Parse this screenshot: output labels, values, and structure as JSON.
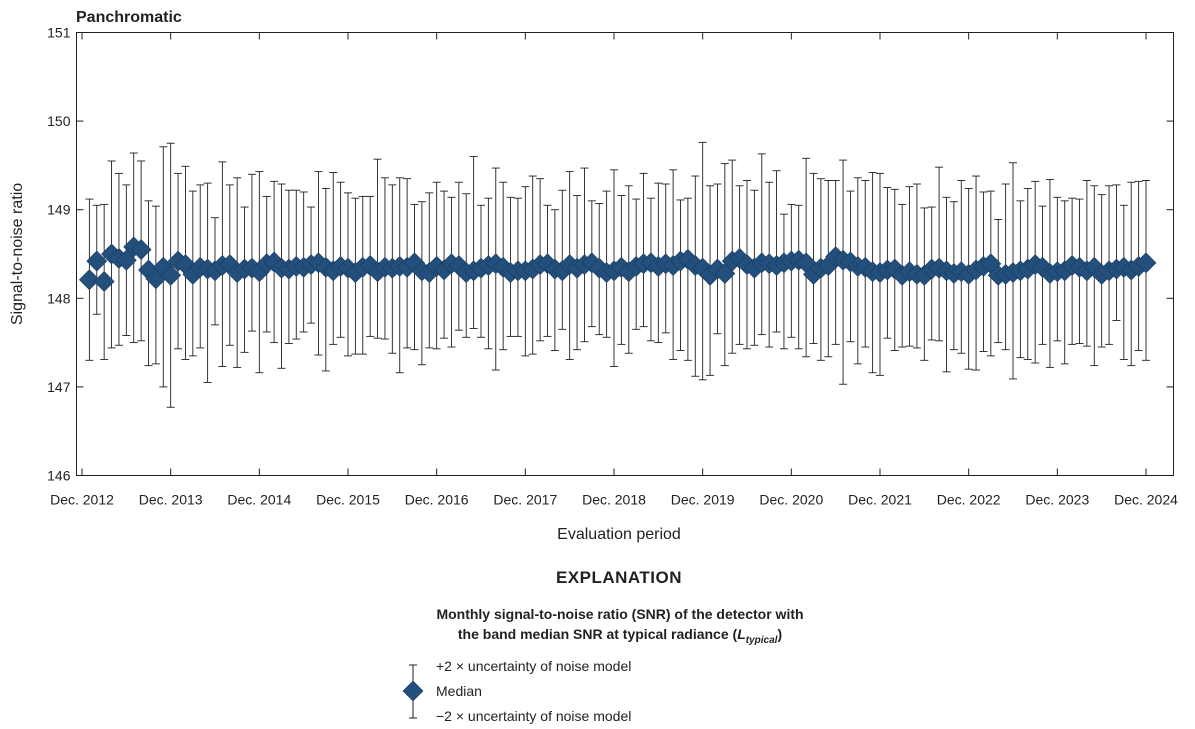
{
  "chart_data": {
    "type": "scatter",
    "title": "Panchromatic",
    "xlabel": "Evaluation period",
    "ylabel": "Signal-to-noise ratio",
    "ylim": [
      146,
      151
    ],
    "yticks": [
      "146",
      "147",
      "148",
      "149",
      "150",
      "151"
    ],
    "xticks": [
      "Dec. 2012",
      "Dec. 2013",
      "Dec. 2014",
      "Dec. 2015",
      "Dec. 2016",
      "Dec. 2017",
      "Dec. 2018",
      "Dec. 2019",
      "Dec. 2020",
      "Dec. 2021",
      "Dec. 2022",
      "Dec. 2023",
      "Dec. 2024"
    ],
    "x_unit": "month",
    "marker_color": "#234f7d",
    "series": [
      {
        "name": "Median",
        "months": [
          "2013-01",
          "2013-02",
          "2013-03",
          "2013-04",
          "2013-05",
          "2013-06",
          "2013-07",
          "2013-08",
          "2013-09",
          "2013-10",
          "2013-11",
          "2013-12",
          "2014-01",
          "2014-02",
          "2014-03",
          "2014-04",
          "2014-05",
          "2014-06",
          "2014-07",
          "2014-08",
          "2014-09",
          "2014-10",
          "2014-11",
          "2014-12",
          "2015-01",
          "2015-02",
          "2015-03",
          "2015-04",
          "2015-05",
          "2015-06",
          "2015-07",
          "2015-08",
          "2015-09",
          "2015-10",
          "2015-11",
          "2015-12",
          "2016-01",
          "2016-02",
          "2016-03",
          "2016-04",
          "2016-05",
          "2016-06",
          "2016-07",
          "2016-08",
          "2016-09",
          "2016-10",
          "2016-11",
          "2016-12",
          "2017-01",
          "2017-02",
          "2017-03",
          "2017-04",
          "2017-05",
          "2017-06",
          "2017-07",
          "2017-08",
          "2017-09",
          "2017-10",
          "2017-11",
          "2017-12",
          "2018-01",
          "2018-02",
          "2018-03",
          "2018-04",
          "2018-05",
          "2018-06",
          "2018-07",
          "2018-08",
          "2018-09",
          "2018-10",
          "2018-11",
          "2018-12",
          "2019-01",
          "2019-02",
          "2019-03",
          "2019-04",
          "2019-05",
          "2019-06",
          "2019-07",
          "2019-08",
          "2019-09",
          "2019-10",
          "2019-11",
          "2019-12",
          "2020-01",
          "2020-02",
          "2020-03",
          "2020-04",
          "2020-05",
          "2020-06",
          "2020-07",
          "2020-08",
          "2020-09",
          "2020-10",
          "2020-11",
          "2020-12",
          "2021-01",
          "2021-02",
          "2021-03",
          "2021-04",
          "2021-05",
          "2021-06",
          "2021-07",
          "2021-08",
          "2021-09",
          "2021-10",
          "2021-11",
          "2021-12",
          "2022-01",
          "2022-02",
          "2022-03",
          "2022-04",
          "2022-05",
          "2022-06",
          "2022-07",
          "2022-08",
          "2022-09",
          "2022-10",
          "2022-11",
          "2022-12",
          "2023-01",
          "2023-02",
          "2023-03",
          "2023-04",
          "2023-05",
          "2023-06",
          "2023-07",
          "2023-08",
          "2023-09",
          "2023-10",
          "2023-11",
          "2023-12",
          "2024-01",
          "2024-02",
          "2024-03",
          "2024-04",
          "2024-05",
          "2024-06",
          "2024-07",
          "2024-08",
          "2024-09",
          "2024-10",
          "2024-11",
          "2024-12"
        ],
        "median": [
          148.21,
          148.42,
          148.19,
          148.5,
          148.45,
          148.43,
          148.58,
          148.55,
          148.32,
          148.22,
          148.35,
          148.26,
          148.42,
          148.38,
          148.27,
          148.35,
          148.33,
          148.31,
          148.37,
          148.38,
          148.29,
          148.33,
          148.34,
          148.3,
          148.39,
          148.41,
          148.34,
          148.33,
          148.36,
          148.35,
          148.38,
          148.4,
          148.35,
          148.31,
          148.36,
          148.34,
          148.29,
          148.35,
          148.37,
          148.3,
          148.35,
          148.34,
          148.36,
          148.35,
          148.4,
          148.31,
          148.29,
          148.36,
          148.32,
          148.39,
          148.37,
          148.29,
          148.31,
          148.34,
          148.37,
          148.39,
          148.35,
          148.29,
          148.31,
          148.31,
          148.33,
          148.38,
          148.39,
          148.33,
          148.31,
          148.38,
          148.34,
          148.38,
          148.4,
          148.34,
          148.29,
          148.31,
          148.35,
          148.3,
          148.36,
          148.39,
          148.4,
          148.36,
          148.39,
          148.37,
          148.42,
          148.44,
          148.37,
          148.34,
          148.26,
          148.33,
          148.28,
          148.42,
          148.45,
          148.38,
          148.34,
          148.4,
          148.39,
          148.37,
          148.4,
          148.42,
          148.43,
          148.4,
          148.27,
          148.34,
          148.37,
          148.47,
          148.43,
          148.41,
          148.36,
          148.35,
          148.3,
          148.29,
          148.32,
          148.33,
          148.26,
          148.3,
          148.27,
          148.26,
          148.33,
          148.34,
          148.31,
          148.28,
          148.3,
          148.27,
          148.32,
          148.36,
          148.39,
          148.26,
          148.27,
          148.29,
          148.31,
          148.33,
          148.38,
          148.35,
          148.28,
          148.3,
          148.31,
          148.37,
          148.35,
          148.31,
          148.35,
          148.27,
          148.31,
          148.33,
          148.35,
          148.32,
          148.36,
          148.4
        ],
        "upper": [
          149.12,
          149.05,
          149.06,
          149.55,
          149.41,
          149.28,
          149.64,
          149.55,
          149.1,
          149.04,
          149.71,
          149.75,
          149.41,
          149.49,
          149.21,
          149.28,
          149.3,
          148.91,
          149.54,
          149.28,
          149.36,
          149.03,
          149.4,
          149.43,
          149.15,
          149.32,
          149.29,
          149.22,
          149.22,
          149.2,
          149.03,
          149.43,
          149.24,
          149.42,
          149.31,
          149.19,
          149.13,
          149.15,
          149.15,
          149.57,
          149.36,
          149.28,
          149.36,
          149.35,
          149.06,
          149.09,
          149.19,
          149.31,
          149.21,
          149.14,
          149.31,
          149.18,
          149.6,
          149.05,
          149.13,
          149.47,
          149.31,
          149.14,
          149.13,
          149.26,
          149.38,
          149.35,
          149.05,
          149.0,
          149.22,
          149.43,
          149.16,
          149.47,
          149.1,
          149.07,
          149.21,
          149.45,
          149.16,
          149.27,
          149.12,
          149.41,
          149.13,
          149.3,
          149.29,
          149.45,
          149.11,
          149.13,
          149.38,
          149.76,
          149.27,
          149.29,
          149.52,
          149.56,
          149.27,
          149.33,
          149.22,
          149.63,
          149.31,
          149.44,
          148.95,
          149.06,
          149.05,
          149.58,
          149.41,
          149.35,
          149.33,
          149.33,
          149.56,
          149.21,
          149.36,
          149.33,
          149.42,
          149.41,
          149.25,
          149.23,
          149.06,
          149.26,
          149.29,
          149.02,
          149.03,
          149.48,
          149.14,
          149.09,
          149.33,
          149.24,
          149.38,
          149.2,
          149.21,
          148.89,
          149.29,
          149.53,
          149.1,
          149.24,
          149.32,
          149.04,
          149.34,
          149.14,
          149.1,
          149.13,
          149.12,
          149.33,
          149.27,
          149.17,
          149.27,
          149.28,
          149.05,
          149.31,
          149.32,
          149.33
        ],
        "lower": [
          147.3,
          147.82,
          147.31,
          147.44,
          147.47,
          147.58,
          147.5,
          147.52,
          147.24,
          147.26,
          147.0,
          146.77,
          147.43,
          147.31,
          147.35,
          147.44,
          147.05,
          147.7,
          147.23,
          147.47,
          147.22,
          147.39,
          147.63,
          147.16,
          147.62,
          147.5,
          147.21,
          147.49,
          147.54,
          147.62,
          147.72,
          147.36,
          147.18,
          147.48,
          147.56,
          147.35,
          147.37,
          147.37,
          147.57,
          147.55,
          147.54,
          147.38,
          147.16,
          147.44,
          147.42,
          147.25,
          147.44,
          147.43,
          147.55,
          147.45,
          147.64,
          147.56,
          147.66,
          147.56,
          147.43,
          147.19,
          147.42,
          147.57,
          147.57,
          147.35,
          147.37,
          147.52,
          147.57,
          147.41,
          147.65,
          147.31,
          147.42,
          147.51,
          147.68,
          147.59,
          147.56,
          147.23,
          147.48,
          147.38,
          147.65,
          147.68,
          147.52,
          147.5,
          147.61,
          147.31,
          147.41,
          147.3,
          147.12,
          147.08,
          147.13,
          147.6,
          147.24,
          147.38,
          147.48,
          147.43,
          147.47,
          147.59,
          147.45,
          147.62,
          147.43,
          147.56,
          147.43,
          147.34,
          147.49,
          147.3,
          147.34,
          147.48,
          147.03,
          147.51,
          147.26,
          147.45,
          147.16,
          147.13,
          147.55,
          147.41,
          147.45,
          147.46,
          147.44,
          147.3,
          147.53,
          147.52,
          147.17,
          147.42,
          147.38,
          147.2,
          147.19,
          147.4,
          147.35,
          147.5,
          147.42,
          147.09,
          147.33,
          147.31,
          147.27,
          147.48,
          147.22,
          147.52,
          147.26,
          147.48,
          147.49,
          147.46,
          147.24,
          147.45,
          147.48,
          147.75,
          147.31,
          147.24,
          147.41,
          147.3
        ]
      }
    ],
    "legend_placement": "bottom-center"
  },
  "legend": {
    "heading": "EXPLANATION",
    "description_line1": "Monthly signal-to-noise ratio (SNR) of the detector with",
    "description_line2_pre": "the band median SNR at typical radiance (",
    "description_symbol": "L",
    "description_subscript": "typical",
    "description_line2_post": ")",
    "upper_label": "+2 × uncertainty of noise model",
    "median_label": "Median",
    "lower_label": "−2 × uncertainty of noise model"
  }
}
